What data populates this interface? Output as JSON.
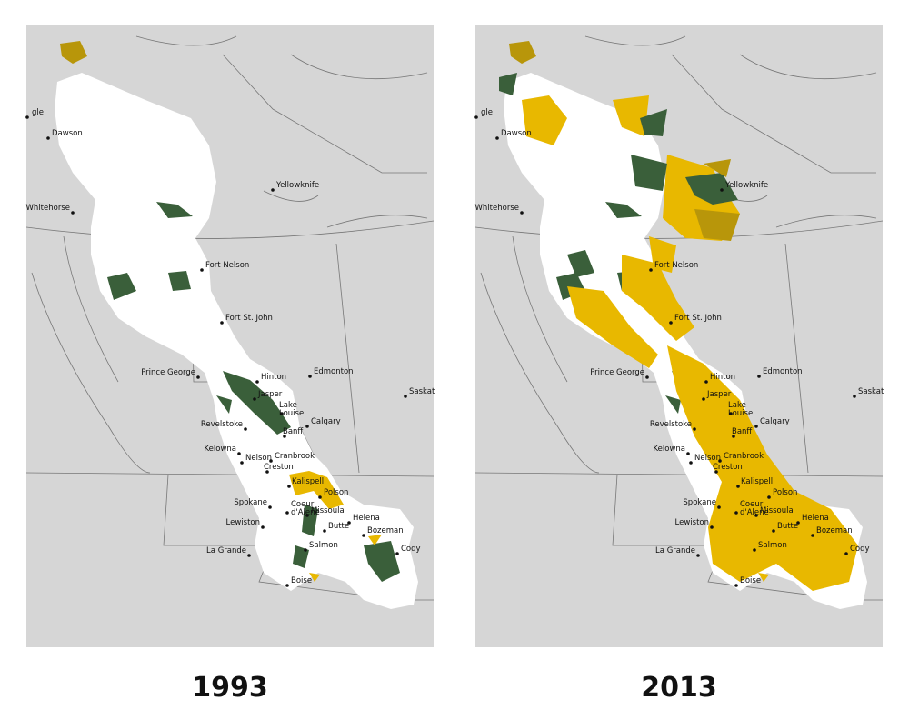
{
  "panels": [
    {
      "year": "1993"
    },
    {
      "year": "2013"
    }
  ],
  "cities": [
    [
      "gle"
    ],
    [
      "Dawson"
    ],
    [
      "Whitehorse"
    ],
    [
      "Yellowknife"
    ],
    [
      "Fort Nelson"
    ],
    [
      "Fort St. John"
    ],
    [
      "Prince George"
    ],
    [
      "Hinton"
    ],
    [
      "Edmonton"
    ],
    [
      "Jasper"
    ],
    [
      "Saskat"
    ],
    [
      "Lake",
      "Louise"
    ],
    [
      "Revelstoke"
    ],
    [
      "Calgary"
    ],
    [
      "Banff"
    ],
    [
      "Kelowna"
    ],
    [
      "Nelson"
    ],
    [
      "Cranbrook"
    ],
    [
      "Creston"
    ],
    [
      "Kalispell"
    ],
    [
      "Polson"
    ],
    [
      "Spokane"
    ],
    [
      "Coeur",
      "d'Alene"
    ],
    [
      "Missoula"
    ],
    [
      "Helena"
    ],
    [
      "Lewiston"
    ],
    [
      "Butte"
    ],
    [
      "Bozeman"
    ],
    [
      "Salmon"
    ],
    [
      "Cody"
    ],
    [
      "La Grande"
    ],
    [
      "Boise"
    ]
  ]
}
